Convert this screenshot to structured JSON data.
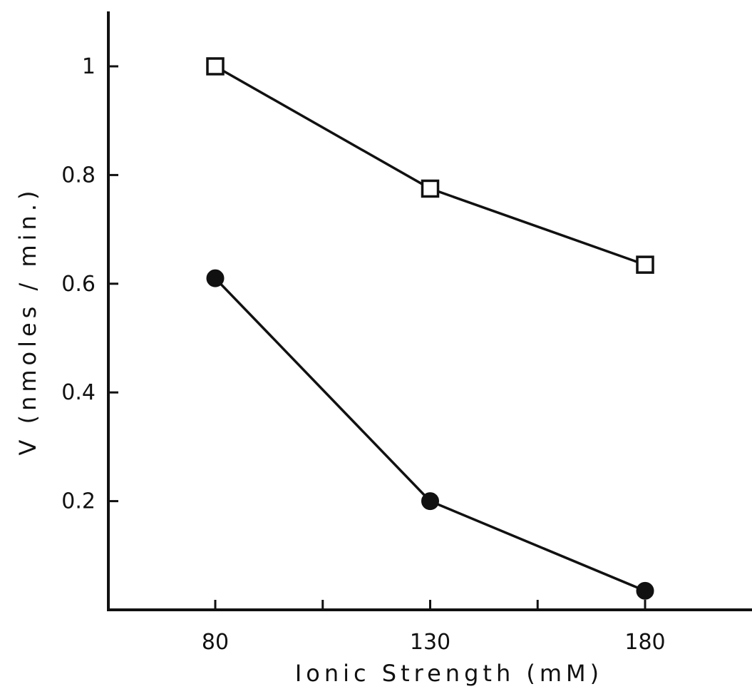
{
  "chart_data": {
    "type": "line",
    "title": "",
    "xlabel": "Ionic Strength (mM)",
    "ylabel": "V (nmoles / min.)",
    "x": [
      80,
      130,
      180
    ],
    "xlim": [
      55,
      180
    ],
    "ylim": [
      0,
      1.1
    ],
    "x_ticks": [
      80,
      105,
      130,
      155,
      180
    ],
    "x_tick_labels": [
      "80",
      "",
      "130",
      "",
      "180"
    ],
    "y_ticks": [
      0.2,
      0.4,
      0.6,
      0.8,
      1.0
    ],
    "y_tick_labels": [
      "0.2",
      "0.4",
      "0.6",
      "0.8",
      "1"
    ],
    "grid": false,
    "legend": "none",
    "series": [
      {
        "marker": "open-square",
        "color": "#111111",
        "values": [
          1.0,
          0.775,
          0.635
        ]
      },
      {
        "marker": "filled-circle",
        "color": "#111111",
        "values": [
          0.61,
          0.2,
          0.035
        ]
      }
    ]
  }
}
